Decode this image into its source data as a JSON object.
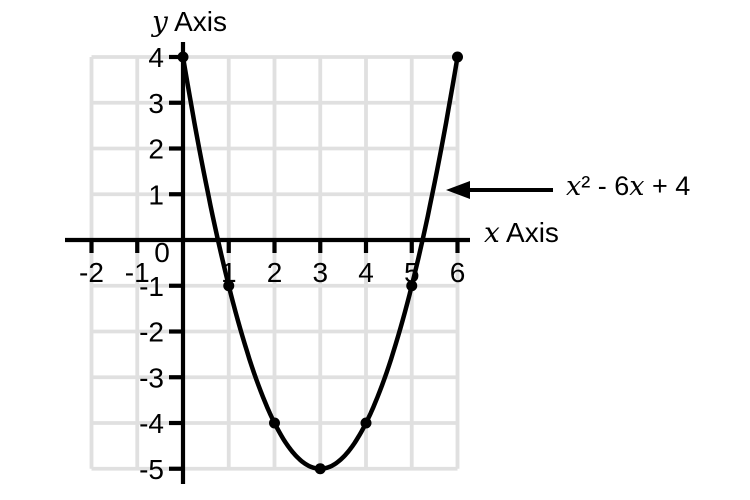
{
  "labels": {
    "y_axis_parts": [
      {
        "t": "y",
        "i": true
      },
      {
        "t": " Axis",
        "i": false
      }
    ],
    "x_axis_parts": [
      {
        "t": "x",
        "i": true
      },
      {
        "t": " Axis",
        "i": false
      }
    ]
  },
  "annotation": {
    "text": "x² - 6x + 4",
    "parts": [
      {
        "t": "x",
        "i": true
      },
      {
        "t": "² - 6",
        "i": false
      },
      {
        "t": "x",
        "i": true
      },
      {
        "t": " + 4",
        "i": false
      }
    ]
  },
  "chart_data": {
    "type": "line",
    "title": "",
    "xlabel": "x Axis",
    "ylabel": "y Axis",
    "function_label": "x² - 6x + 4",
    "function": {
      "a": 1,
      "b": -6,
      "c": 4,
      "domain": [
        0,
        6
      ]
    },
    "points": [
      [
        0,
        4
      ],
      [
        1,
        -1
      ],
      [
        2,
        -4
      ],
      [
        3,
        -5
      ],
      [
        4,
        -4
      ],
      [
        5,
        -1
      ],
      [
        6,
        4
      ]
    ],
    "x_ticks": [
      -2,
      -1,
      0,
      1,
      2,
      3,
      4,
      5,
      6
    ],
    "y_ticks": [
      4,
      3,
      2,
      1,
      -1,
      -2,
      -3,
      -4,
      -5
    ],
    "xlim": [
      -2,
      6
    ],
    "ylim": [
      -5,
      4
    ],
    "grid": true,
    "legend": false,
    "colors": {
      "axis": "#000000",
      "curve": "#000000",
      "grid": "#e0e0e0",
      "points": "#000000",
      "text": "#000000"
    }
  }
}
